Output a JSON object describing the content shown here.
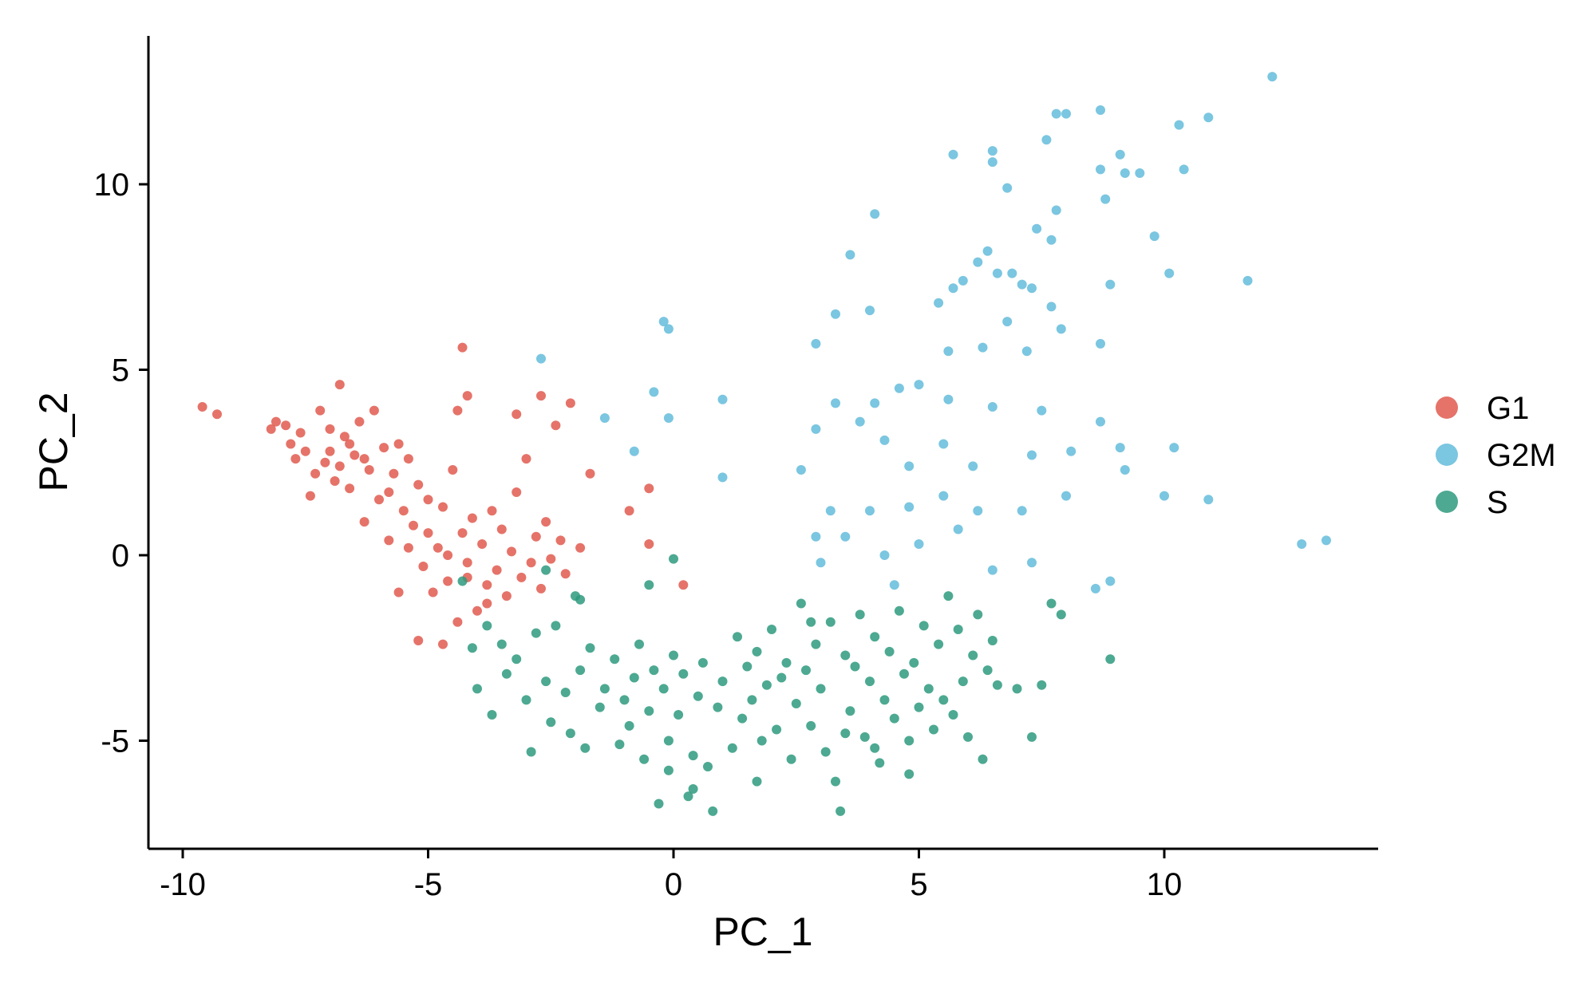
{
  "chart_data": {
    "type": "scatter",
    "xlabel": "PC_1",
    "ylabel": "PC_2",
    "xlim": [
      -10.7,
      14.4
    ],
    "ylim": [
      -7.9,
      14.0
    ],
    "x_ticks": [
      -10,
      -5,
      0,
      5,
      10
    ],
    "y_ticks": [
      -5,
      0,
      5,
      10
    ],
    "x_tick_labels": [
      "-10",
      "-5",
      "0",
      "5",
      "10"
    ],
    "y_tick_labels": [
      "-5",
      "0",
      "5",
      "10"
    ],
    "grid": false,
    "legend_position": "right",
    "series": [
      {
        "name": "G1",
        "color": "#E05A4F",
        "points": [
          [
            -9.6,
            4.0
          ],
          [
            -9.3,
            3.8
          ],
          [
            -8.2,
            3.4
          ],
          [
            -8.1,
            3.6
          ],
          [
            -7.9,
            3.5
          ],
          [
            -7.8,
            3.0
          ],
          [
            -7.7,
            2.6
          ],
          [
            -7.6,
            3.3
          ],
          [
            -7.5,
            2.8
          ],
          [
            -7.4,
            1.6
          ],
          [
            -7.3,
            2.2
          ],
          [
            -7.2,
            3.9
          ],
          [
            -7.1,
            2.5
          ],
          [
            -7.0,
            3.4
          ],
          [
            -6.9,
            2.0
          ],
          [
            -6.8,
            4.6
          ],
          [
            -6.7,
            3.2
          ],
          [
            -6.6,
            1.8
          ],
          [
            -6.5,
            2.7
          ],
          [
            -6.4,
            3.6
          ],
          [
            -6.3,
            0.9
          ],
          [
            -6.2,
            2.3
          ],
          [
            -6.1,
            3.9
          ],
          [
            -6.0,
            1.5
          ],
          [
            -5.9,
            2.9
          ],
          [
            -5.8,
            0.4
          ],
          [
            -5.7,
            2.2
          ],
          [
            -5.6,
            3.0
          ],
          [
            -5.5,
            1.2
          ],
          [
            -5.4,
            2.6
          ],
          [
            -5.3,
            0.8
          ],
          [
            -5.2,
            1.9
          ],
          [
            -5.1,
            -0.3
          ],
          [
            -5.0,
            1.5
          ],
          [
            -4.9,
            -1.0
          ],
          [
            -4.8,
            0.2
          ],
          [
            -4.7,
            1.3
          ],
          [
            -4.6,
            -0.7
          ],
          [
            -4.5,
            2.3
          ],
          [
            -4.4,
            -1.8
          ],
          [
            -4.3,
            0.6
          ],
          [
            -4.2,
            -0.2
          ],
          [
            -4.1,
            1.0
          ],
          [
            -4.0,
            -1.5
          ],
          [
            -3.9,
            0.3
          ],
          [
            -3.8,
            -0.8
          ],
          [
            -3.7,
            1.2
          ],
          [
            -3.6,
            -0.4
          ],
          [
            -3.5,
            0.7
          ],
          [
            -3.4,
            -1.1
          ],
          [
            -3.3,
            0.1
          ],
          [
            -3.2,
            1.7
          ],
          [
            -3.1,
            -0.6
          ],
          [
            -3.0,
            2.6
          ],
          [
            -2.9,
            -0.2
          ],
          [
            -2.8,
            0.5
          ],
          [
            -2.7,
            -0.9
          ],
          [
            -2.6,
            0.9
          ],
          [
            -2.5,
            -0.1
          ],
          [
            -2.4,
            3.5
          ],
          [
            -2.3,
            0.4
          ],
          [
            -2.2,
            -0.5
          ],
          [
            -2.1,
            4.1
          ],
          [
            -1.9,
            0.2
          ],
          [
            -1.7,
            2.2
          ],
          [
            -0.9,
            1.2
          ],
          [
            -0.5,
            1.8
          ],
          [
            0.2,
            -0.8
          ],
          [
            -0.5,
            0.3
          ],
          [
            -4.3,
            5.6
          ],
          [
            -4.2,
            4.3
          ],
          [
            -4.4,
            3.9
          ],
          [
            -2.7,
            4.3
          ],
          [
            -3.2,
            3.8
          ],
          [
            -7.0,
            2.8
          ],
          [
            -6.8,
            2.4
          ],
          [
            -6.6,
            3.0
          ],
          [
            -6.3,
            2.6
          ],
          [
            -5.8,
            1.7
          ],
          [
            -5.4,
            0.2
          ],
          [
            -5.0,
            0.6
          ],
          [
            -4.6,
            0.0
          ],
          [
            -4.2,
            -0.6
          ],
          [
            -3.8,
            -1.3
          ],
          [
            -5.6,
            -1.0
          ],
          [
            -5.2,
            -2.3
          ],
          [
            -4.7,
            -2.4
          ]
        ]
      },
      {
        "name": "G2M",
        "color": "#64BCDA",
        "points": [
          [
            12.2,
            12.9
          ],
          [
            8.7,
            12.0
          ],
          [
            8.0,
            11.9
          ],
          [
            7.8,
            11.9
          ],
          [
            10.3,
            11.6
          ],
          [
            10.9,
            11.8
          ],
          [
            7.6,
            11.2
          ],
          [
            6.5,
            10.9
          ],
          [
            6.5,
            10.6
          ],
          [
            5.7,
            10.8
          ],
          [
            8.7,
            10.4
          ],
          [
            9.1,
            10.8
          ],
          [
            9.2,
            10.3
          ],
          [
            9.5,
            10.3
          ],
          [
            10.4,
            10.4
          ],
          [
            8.8,
            9.6
          ],
          [
            6.8,
            9.9
          ],
          [
            4.1,
            9.2
          ],
          [
            7.8,
            9.3
          ],
          [
            7.4,
            8.8
          ],
          [
            7.7,
            8.5
          ],
          [
            9.8,
            8.6
          ],
          [
            6.4,
            8.2
          ],
          [
            3.6,
            8.1
          ],
          [
            6.2,
            7.9
          ],
          [
            6.6,
            7.6
          ],
          [
            6.9,
            7.6
          ],
          [
            7.3,
            7.2
          ],
          [
            8.9,
            7.3
          ],
          [
            10.1,
            7.6
          ],
          [
            11.7,
            7.4
          ],
          [
            5.7,
            7.2
          ],
          [
            5.9,
            7.4
          ],
          [
            7.1,
            7.3
          ],
          [
            7.7,
            6.7
          ],
          [
            3.3,
            6.5
          ],
          [
            4.0,
            6.6
          ],
          [
            5.4,
            6.8
          ],
          [
            6.8,
            6.3
          ],
          [
            7.9,
            6.1
          ],
          [
            8.7,
            5.7
          ],
          [
            2.9,
            5.7
          ],
          [
            5.6,
            5.5
          ],
          [
            6.3,
            5.6
          ],
          [
            7.2,
            5.5
          ],
          [
            -0.2,
            6.3
          ],
          [
            -0.1,
            6.1
          ],
          [
            1.0,
            4.2
          ],
          [
            -2.7,
            5.3
          ],
          [
            -0.4,
            4.4
          ],
          [
            -1.4,
            3.7
          ],
          [
            -0.1,
            3.7
          ],
          [
            2.9,
            3.4
          ],
          [
            3.3,
            4.1
          ],
          [
            3.8,
            3.6
          ],
          [
            4.1,
            4.1
          ],
          [
            4.6,
            4.5
          ],
          [
            5.0,
            4.6
          ],
          [
            5.6,
            4.2
          ],
          [
            6.5,
            4.0
          ],
          [
            7.5,
            3.9
          ],
          [
            8.7,
            3.6
          ],
          [
            4.3,
            3.1
          ],
          [
            4.8,
            2.4
          ],
          [
            5.5,
            3.0
          ],
          [
            6.1,
            2.4
          ],
          [
            7.3,
            2.7
          ],
          [
            8.1,
            2.8
          ],
          [
            9.1,
            2.9
          ],
          [
            10.2,
            2.9
          ],
          [
            2.6,
            2.3
          ],
          [
            3.2,
            1.2
          ],
          [
            4.0,
            1.2
          ],
          [
            4.8,
            1.3
          ],
          [
            5.5,
            1.6
          ],
          [
            6.2,
            1.2
          ],
          [
            7.1,
            1.2
          ],
          [
            8.0,
            1.6
          ],
          [
            10.0,
            1.6
          ],
          [
            10.9,
            1.5
          ],
          [
            2.9,
            0.5
          ],
          [
            3.5,
            0.5
          ],
          [
            4.3,
            0.0
          ],
          [
            5.0,
            0.3
          ],
          [
            5.8,
            0.7
          ],
          [
            6.5,
            -0.4
          ],
          [
            7.3,
            -0.2
          ],
          [
            8.6,
            -0.9
          ],
          [
            12.8,
            0.3
          ],
          [
            13.3,
            0.4
          ],
          [
            -0.8,
            2.8
          ],
          [
            1.0,
            2.1
          ],
          [
            3.0,
            -0.2
          ],
          [
            4.5,
            -0.8
          ],
          [
            9.2,
            2.3
          ],
          [
            8.9,
            -0.7
          ]
        ]
      },
      {
        "name": "S",
        "color": "#2E9A7E",
        "points": [
          [
            -4.3,
            -0.7
          ],
          [
            -4.1,
            -2.5
          ],
          [
            -4.0,
            -3.6
          ],
          [
            -3.8,
            -1.9
          ],
          [
            -3.7,
            -4.3
          ],
          [
            -3.5,
            -2.4
          ],
          [
            -3.4,
            -3.2
          ],
          [
            -3.2,
            -2.8
          ],
          [
            -3.0,
            -3.9
          ],
          [
            -2.9,
            -5.3
          ],
          [
            -2.8,
            -2.1
          ],
          [
            -2.6,
            -3.4
          ],
          [
            -2.5,
            -4.5
          ],
          [
            -2.4,
            -1.9
          ],
          [
            -2.2,
            -3.7
          ],
          [
            -2.1,
            -4.8
          ],
          [
            -2.0,
            -1.1
          ],
          [
            -1.9,
            -3.1
          ],
          [
            -1.8,
            -5.2
          ],
          [
            -1.7,
            -2.5
          ],
          [
            -1.5,
            -4.1
          ],
          [
            -1.4,
            -3.6
          ],
          [
            -1.2,
            -2.8
          ],
          [
            -1.1,
            -5.1
          ],
          [
            -1.0,
            -3.9
          ],
          [
            -0.9,
            -4.6
          ],
          [
            -0.8,
            -3.3
          ],
          [
            -0.7,
            -2.4
          ],
          [
            -0.6,
            -5.5
          ],
          [
            -0.5,
            -4.2
          ],
          [
            -0.4,
            -3.1
          ],
          [
            -0.3,
            -6.7
          ],
          [
            -0.2,
            -3.6
          ],
          [
            -0.1,
            -5.0
          ],
          [
            0.0,
            -2.7
          ],
          [
            0.1,
            -4.3
          ],
          [
            0.2,
            -3.2
          ],
          [
            0.3,
            -6.5
          ],
          [
            0.4,
            -5.4
          ],
          [
            0.5,
            -3.8
          ],
          [
            0.6,
            -2.9
          ],
          [
            0.7,
            -5.7
          ],
          [
            0.8,
            -6.9
          ],
          [
            0.9,
            -4.1
          ],
          [
            1.0,
            -3.4
          ],
          [
            1.2,
            -5.2
          ],
          [
            1.3,
            -2.2
          ],
          [
            1.4,
            -4.4
          ],
          [
            1.5,
            -3.0
          ],
          [
            1.6,
            -3.9
          ],
          [
            1.7,
            -2.6
          ],
          [
            1.8,
            -5.0
          ],
          [
            1.9,
            -3.5
          ],
          [
            2.0,
            -2.0
          ],
          [
            2.1,
            -4.7
          ],
          [
            2.2,
            -3.3
          ],
          [
            2.3,
            -2.9
          ],
          [
            2.4,
            -5.5
          ],
          [
            2.5,
            -4.0
          ],
          [
            2.6,
            -1.3
          ],
          [
            2.7,
            -3.1
          ],
          [
            2.8,
            -4.6
          ],
          [
            2.9,
            -2.4
          ],
          [
            3.0,
            -3.6
          ],
          [
            3.1,
            -5.3
          ],
          [
            3.2,
            -1.8
          ],
          [
            3.3,
            -6.1
          ],
          [
            3.4,
            -6.9
          ],
          [
            3.5,
            -2.7
          ],
          [
            3.6,
            -4.2
          ],
          [
            3.7,
            -3.0
          ],
          [
            3.8,
            -1.6
          ],
          [
            3.9,
            -4.9
          ],
          [
            4.0,
            -3.4
          ],
          [
            4.1,
            -2.2
          ],
          [
            4.2,
            -5.6
          ],
          [
            4.3,
            -3.9
          ],
          [
            4.4,
            -2.6
          ],
          [
            4.5,
            -4.4
          ],
          [
            4.6,
            -1.5
          ],
          [
            4.7,
            -3.2
          ],
          [
            4.8,
            -5.0
          ],
          [
            4.9,
            -2.9
          ],
          [
            5.0,
            -4.1
          ],
          [
            5.1,
            -1.9
          ],
          [
            5.2,
            -3.6
          ],
          [
            5.3,
            -4.7
          ],
          [
            5.4,
            -2.4
          ],
          [
            5.5,
            -3.9
          ],
          [
            5.6,
            -1.1
          ],
          [
            5.7,
            -4.3
          ],
          [
            5.8,
            -2.0
          ],
          [
            5.9,
            -3.4
          ],
          [
            6.0,
            -4.9
          ],
          [
            6.1,
            -2.7
          ],
          [
            6.2,
            -1.6
          ],
          [
            6.3,
            -5.5
          ],
          [
            6.4,
            -3.1
          ],
          [
            6.5,
            -2.3
          ],
          [
            6.6,
            -3.5
          ],
          [
            7.0,
            -3.6
          ],
          [
            7.3,
            -4.9
          ],
          [
            7.5,
            -3.5
          ],
          [
            7.7,
            -1.3
          ],
          [
            7.9,
            -1.6
          ],
          [
            8.9,
            -2.8
          ],
          [
            -0.5,
            -0.8
          ],
          [
            0.0,
            -0.1
          ],
          [
            -2.6,
            -0.4
          ],
          [
            -1.9,
            -1.2
          ],
          [
            2.8,
            -1.8
          ],
          [
            3.5,
            -4.8
          ],
          [
            4.1,
            -5.2
          ],
          [
            4.8,
            -5.9
          ],
          [
            1.7,
            -6.1
          ],
          [
            0.4,
            -6.3
          ],
          [
            -0.1,
            -5.8
          ]
        ]
      }
    ]
  }
}
